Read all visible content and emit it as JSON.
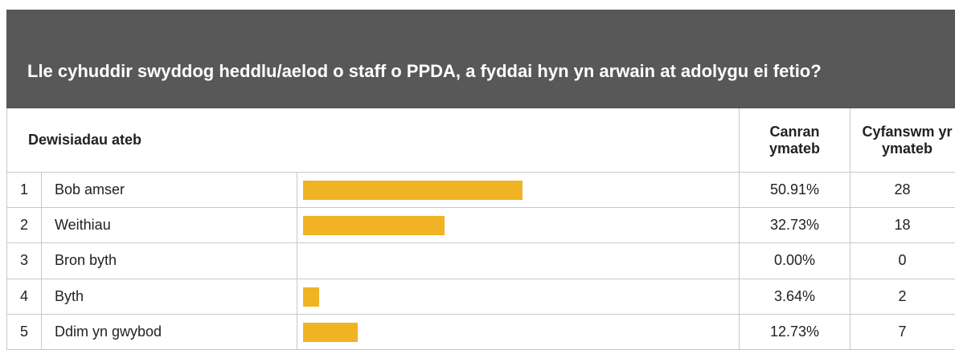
{
  "header": {
    "title": "Lle cyhuddir swyddog heddlu/aelod o staff o PPDA, a fyddai hyn yn arwain at adolygu ei fetio?"
  },
  "table": {
    "columns": [
      "Dewisiadau ateb",
      "Canran ymateb",
      "Cyfanswm yr ymateb"
    ],
    "rows": [
      {
        "n": "1",
        "label": "Bob amser",
        "percent": 50.91,
        "percent_label": "50.91%",
        "count": 28
      },
      {
        "n": "2",
        "label": "Weithiau",
        "percent": 32.73,
        "percent_label": "32.73%",
        "count": 18
      },
      {
        "n": "3",
        "label": "Bron byth",
        "percent": 0,
        "percent_label": "0.00%",
        "count": 0
      },
      {
        "n": "4",
        "label": "Byth",
        "percent": 3.64,
        "percent_label": "3.64%",
        "count": 2
      },
      {
        "n": "5",
        "label": "Ddim yn gwybod",
        "percent": 12.73,
        "percent_label": "12.73%",
        "count": 7
      }
    ],
    "bar_color": "#f0b323"
  }
}
